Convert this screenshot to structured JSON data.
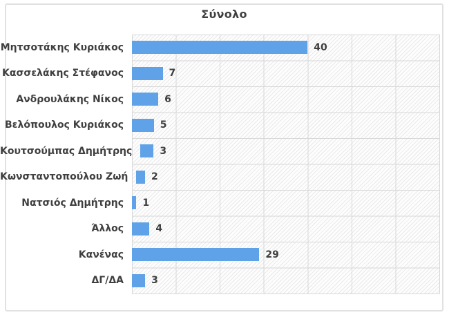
{
  "chart_data": {
    "type": "bar",
    "orientation": "horizontal",
    "title": "Σύνολο",
    "categories": [
      "Μητσοτάκης Κυριάκος",
      "Κασσελάκης Στέφανος",
      "Ανδρουλάκης Νίκος",
      "Βελόπουλος Κυριάκος",
      "Κουτσούμπας Δημήτρης",
      "Κωνσταντοπούλου Ζωή",
      "Νατσιός Δημήτρης",
      "Άλλος",
      "Κανένας",
      "ΔΓ/ΔΑ"
    ],
    "values": [
      40,
      7,
      6,
      5,
      3,
      2,
      1,
      4,
      29,
      3
    ],
    "xlabel": "",
    "ylabel": "",
    "xlim": [
      0,
      70
    ],
    "x_tick_interval": 10,
    "x_tick_labels_visible": false,
    "grid": true,
    "legend": "none",
    "data_labels": true,
    "plot_background": "diagonal-hatch",
    "colors": {
      "bar": "#5fa2e7",
      "text": "#3f3f3f",
      "gridline": "#d8d8d8",
      "frame_border": "#e1e1e1"
    }
  }
}
